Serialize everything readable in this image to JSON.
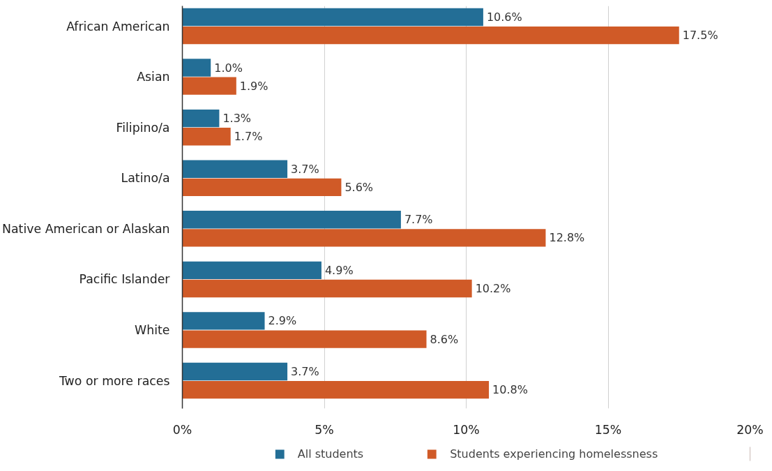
{
  "chart_data": {
    "type": "bar",
    "orientation": "horizontal",
    "categories": [
      "African American",
      "Asian",
      "Filipino/a",
      "Latino/a",
      "Native American or Alaskan",
      "Pacific Islander",
      "White",
      "Two or more races"
    ],
    "series": [
      {
        "name": "All students",
        "color": "#236e96",
        "values": [
          10.6,
          1.0,
          1.3,
          3.7,
          7.7,
          4.9,
          2.9,
          3.7
        ],
        "value_labels": [
          "10.6%",
          "1.0%",
          "1.3%",
          "3.7%",
          "7.7%",
          "4.9%",
          "2.9%",
          "3.7%"
        ]
      },
      {
        "name": "Students experiencing homelessness",
        "color": "#d05a27",
        "values": [
          17.5,
          1.9,
          1.7,
          5.6,
          12.8,
          10.2,
          8.6,
          10.8
        ],
        "value_labels": [
          "17.5%",
          "1.9%",
          "1.7%",
          "5.6%",
          "12.8%",
          "10.2%",
          "8.6%",
          "10.8%"
        ]
      }
    ],
    "xlim": [
      0,
      20
    ],
    "xticks": [
      {
        "value": 0,
        "label": "0%"
      },
      {
        "value": 5,
        "label": "5%"
      },
      {
        "value": 10,
        "label": "10%"
      },
      {
        "value": 15,
        "label": "15%"
      },
      {
        "value": 20,
        "label": "20%"
      }
    ],
    "grid": "x",
    "legend": "bottom"
  }
}
